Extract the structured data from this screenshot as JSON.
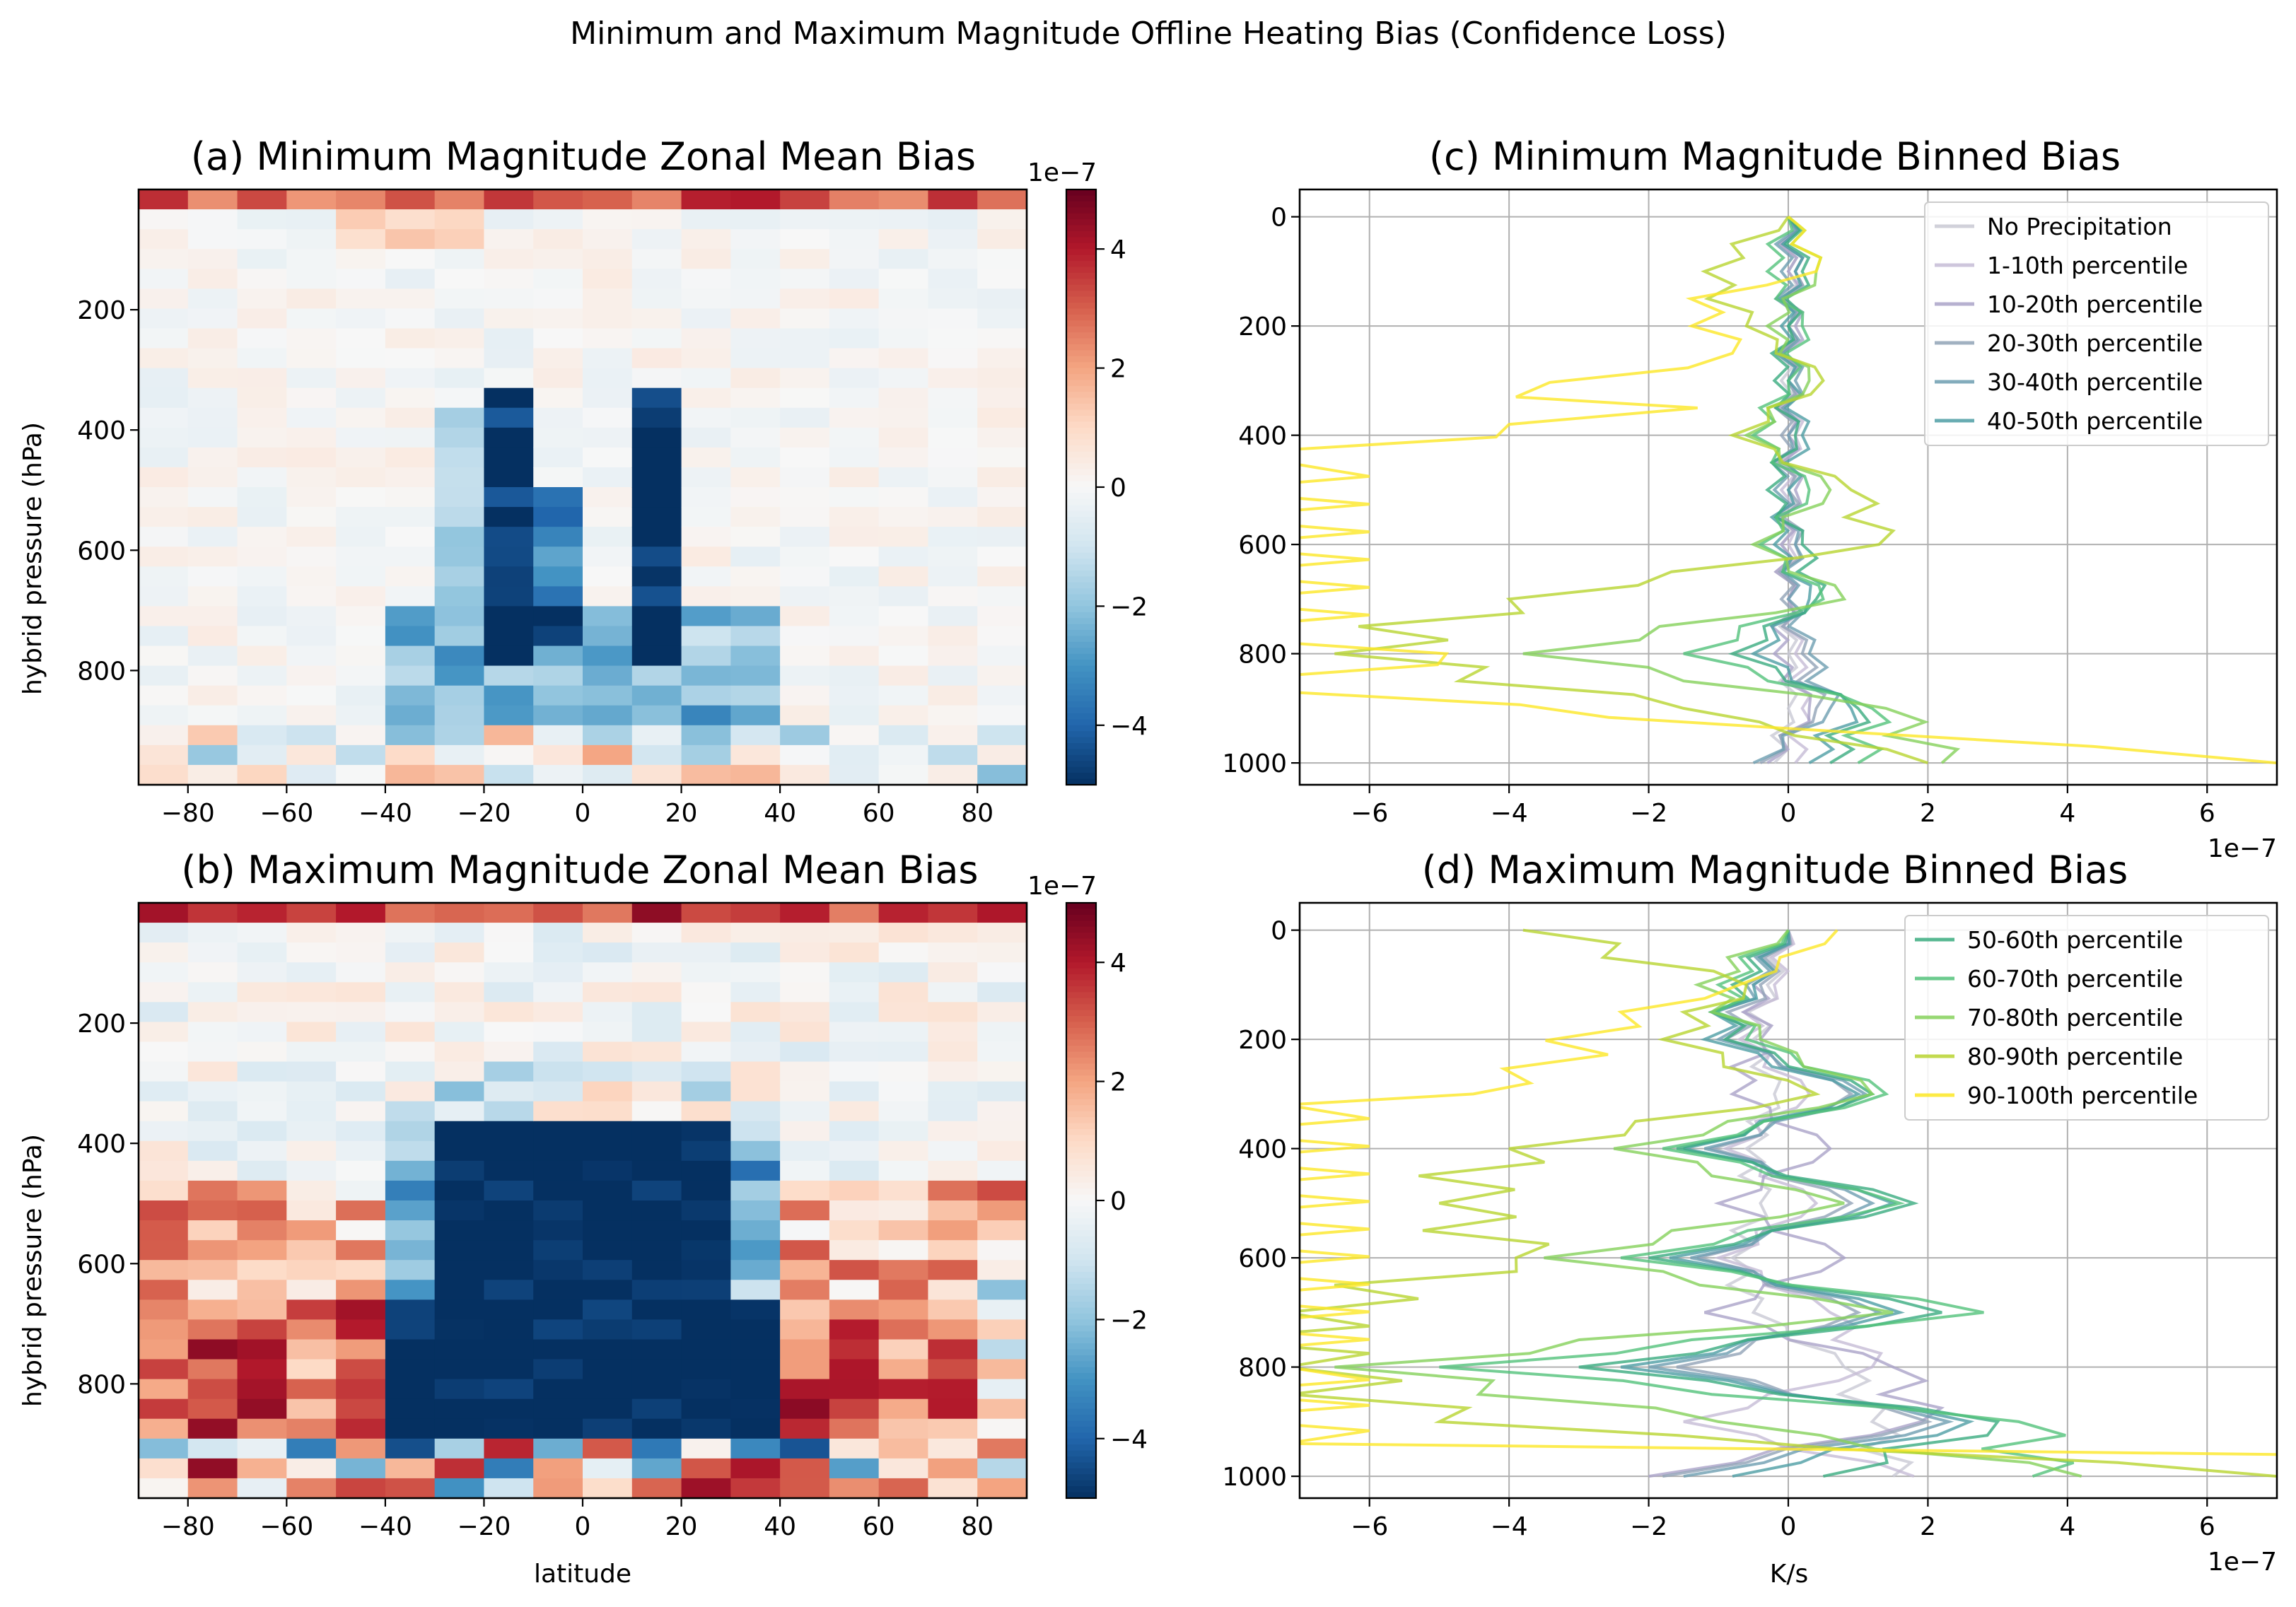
{
  "figure": {
    "suptitle": "Minimum and Maximum Magnitude Offline Heating Bias (Confidence Loss)"
  },
  "colors": {
    "neg_strong": "#053061",
    "neg_mid": "#4393c3",
    "neutral": "#f7f7f7",
    "pos_mid": "#f4a582",
    "pos_strong": "#67001f",
    "grid": "#b0b0b0"
  },
  "chart_data": [
    {
      "id": "a",
      "type": "heatmap",
      "title": "(a) Minimum Magnitude Zonal Mean Bias",
      "xlabel": "",
      "ylabel": "hybrid pressure (hPa)",
      "xlim": [
        -90,
        90
      ],
      "ylim": [
        990,
        0
      ],
      "xticks": [
        -80,
        -60,
        -40,
        -20,
        0,
        20,
        40,
        60,
        80
      ],
      "yticks": [
        200,
        400,
        600,
        800
      ],
      "colorbar": {
        "range": [
          -5,
          5
        ],
        "ticks": [
          4,
          2,
          0,
          -2,
          -4
        ],
        "exponent": "1e−7"
      },
      "latitude_bins": 18,
      "pressure_levels": 30,
      "approx_values": "mostly near 0 (|bias| < 0.5e-7); strong negative (~-5e-7) columns at -20..-10 and 10..20 lat between 350-800 hPa; moderate negative -40..40 lat between 700-900 hPa; positive (~3e-7) near top levels and near surface"
    },
    {
      "id": "b",
      "type": "heatmap",
      "title": "(b) Maximum Magnitude Zonal Mean Bias",
      "xlabel": "latitude",
      "ylabel": "hybrid pressure (hPa)",
      "xlim": [
        -90,
        90
      ],
      "ylim": [
        990,
        0
      ],
      "xticks": [
        -80,
        -60,
        -40,
        -20,
        0,
        20,
        40,
        60,
        80
      ],
      "yticks": [
        200,
        400,
        600,
        800
      ],
      "colorbar": {
        "range": [
          -5,
          5
        ],
        "ticks": [
          4,
          2,
          0,
          -2,
          -4
        ],
        "exponent": "1e−7"
      },
      "latitude_bins": 18,
      "pressure_levels": 30,
      "approx_values": "strong negative (~-5e-7) block from -40 to 40 lat between 350-900 hPa; positive (2-5e-7) in midlatitudes 40-80 deg both hemispheres below 500 hPa; positive near model top"
    },
    {
      "id": "c",
      "type": "line",
      "title": "(c) Minimum Magnitude Binned Bias",
      "xlabel": "",
      "ylabel": "",
      "xlim": [
        -7,
        7
      ],
      "ylim": [
        1040,
        -50
      ],
      "xticks": [
        -6,
        -4,
        -2,
        0,
        2,
        4,
        6
      ],
      "yticks": [
        0,
        200,
        400,
        600,
        800,
        1000
      ],
      "x_exponent": "1e−7",
      "legend": "top-right",
      "series": [
        {
          "name": "No Precipitation",
          "color": "#c9c9d4",
          "pressure": [
            0,
            100,
            200,
            300,
            400,
            500,
            600,
            700,
            800,
            900,
            1000
          ],
          "values": [
            0,
            0,
            0,
            -0.1,
            0,
            0,
            -0.1,
            0,
            0,
            0,
            -0.2
          ]
        },
        {
          "name": "1-10th percentile",
          "color": "#c5bcd6",
          "pressure": [
            0,
            100,
            200,
            300,
            400,
            500,
            600,
            700,
            800,
            900,
            1000
          ],
          "values": [
            0,
            0.1,
            0,
            0,
            0.1,
            -0.1,
            0,
            0,
            0.1,
            0.2,
            0.1
          ]
        },
        {
          "name": "10-20th percentile",
          "color": "#aaa3c8",
          "pressure": [
            0,
            100,
            200,
            300,
            400,
            500,
            600,
            700,
            800,
            900,
            1000
          ],
          "values": [
            0,
            0,
            0.1,
            0,
            0,
            0.1,
            -0.1,
            0,
            -0.2,
            0.3,
            -0.3
          ]
        },
        {
          "name": "20-30th percentile",
          "color": "#91a3b6",
          "pressure": [
            0,
            100,
            200,
            300,
            400,
            500,
            600,
            700,
            800,
            900,
            1000
          ],
          "values": [
            0,
            0.1,
            0,
            0,
            -0.1,
            0,
            0.1,
            -0.1,
            0.2,
            0.4,
            -0.4
          ]
        },
        {
          "name": "30-40th percentile",
          "color": "#6d9db0",
          "pressure": [
            0,
            100,
            200,
            300,
            400,
            500,
            600,
            700,
            800,
            900,
            1000
          ],
          "values": [
            0,
            -0.1,
            0,
            0.1,
            0,
            -0.2,
            0.1,
            0,
            0.3,
            0.6,
            -0.5
          ]
        },
        {
          "name": "40-50th percentile",
          "color": "#4e9ea4",
          "pressure": [
            0,
            100,
            200,
            300,
            400,
            500,
            600,
            700,
            800,
            900,
            1000
          ],
          "values": [
            0,
            0.1,
            -0.1,
            0,
            0.2,
            0,
            -0.2,
            0.3,
            -0.5,
            0.9,
            0.3
          ]
        },
        {
          "name": "50-60th percentile",
          "color": "#3aab7f",
          "legend": false,
          "pressure": [
            0,
            100,
            200,
            300,
            400,
            500,
            600,
            700,
            800,
            900,
            1000
          ],
          "values": [
            0,
            0.2,
            0,
            -0.2,
            0.1,
            -0.3,
            0.2,
            0.4,
            -0.8,
            1.0,
            0.6
          ]
        },
        {
          "name": "60-70th percentile",
          "color": "#52c27a",
          "legend": false,
          "pressure": [
            0,
            100,
            200,
            300,
            400,
            500,
            600,
            700,
            800,
            900,
            1000
          ],
          "values": [
            0,
            -0.3,
            0.2,
            0,
            -0.5,
            0.3,
            -0.4,
            0.5,
            -1.5,
            1.2,
            1.0
          ]
        },
        {
          "name": "70-80th percentile",
          "color": "#85d15a",
          "legend": false,
          "pressure": [
            0,
            100,
            200,
            300,
            400,
            500,
            600,
            700,
            800,
            900,
            1000
          ],
          "values": [
            0,
            0.4,
            -0.3,
            0.3,
            -0.6,
            0.6,
            -0.5,
            0.8,
            -3.8,
            1.4,
            2.2
          ]
        },
        {
          "name": "80-90th percentile",
          "color": "#b8d430",
          "legend": false,
          "pressure": [
            0,
            100,
            200,
            300,
            400,
            500,
            600,
            700,
            800,
            900,
            1000
          ],
          "values": [
            0,
            -1.2,
            -0.6,
            0.5,
            -0.8,
            0.9,
            1.3,
            -4.0,
            -6.5,
            -1.5,
            2.0
          ]
        },
        {
          "name": "90-100th percentile",
          "color": "#fde725",
          "legend": false,
          "pressure": [
            0,
            100,
            150,
            250,
            330,
            350,
            380,
            450,
            780,
            800,
            840,
            870,
            940,
            1000
          ],
          "values": [
            0,
            0.4,
            -1.4,
            -0.8,
            -3.9,
            -1.3,
            -4.0,
            -7.2,
            -7.2,
            -4.9,
            -7.2,
            -7.2,
            0.4,
            7.0
          ]
        }
      ]
    },
    {
      "id": "d",
      "type": "line",
      "title": "(d) Maximum Magnitude Binned Bias",
      "xlabel": "K/s",
      "ylabel": "",
      "xlim": [
        -7,
        7
      ],
      "ylim": [
        1040,
        -50
      ],
      "xticks": [
        -6,
        -4,
        -2,
        0,
        2,
        4,
        6
      ],
      "yticks": [
        0,
        200,
        400,
        600,
        800,
        1000
      ],
      "x_exponent": "1e−7",
      "legend": "top-right",
      "series": [
        {
          "name": "No Precipitation",
          "color": "#c9c9d4",
          "legend": false,
          "pressure": [
            0,
            100,
            200,
            300,
            400,
            500,
            600,
            700,
            800,
            900,
            1000
          ],
          "values": [
            0,
            -0.3,
            -0.5,
            -0.2,
            -0.6,
            -0.4,
            -0.8,
            -0.5,
            0.8,
            1.2,
            1.5
          ]
        },
        {
          "name": "1-10th percentile",
          "color": "#c5bcd6",
          "legend": false,
          "pressure": [
            0,
            100,
            200,
            300,
            400,
            500,
            600,
            700,
            800,
            900,
            1000
          ],
          "values": [
            0,
            -0.2,
            -0.7,
            0.3,
            -0.9,
            0.4,
            -1.0,
            0.6,
            1.2,
            -1.5,
            1.8
          ]
        },
        {
          "name": "10-20th percentile",
          "color": "#aaa3c8",
          "legend": false,
          "pressure": [
            0,
            100,
            200,
            300,
            400,
            500,
            600,
            700,
            800,
            900,
            1000
          ],
          "values": [
            0,
            -0.5,
            -0.4,
            -0.8,
            0.6,
            -1.0,
            0.8,
            -1.2,
            1.5,
            1.9,
            -2.0
          ]
        },
        {
          "name": "20-30th percentile",
          "color": "#91a3b6",
          "legend": false,
          "pressure": [
            0,
            100,
            200,
            300,
            400,
            500,
            600,
            700,
            800,
            900,
            1000
          ],
          "values": [
            0,
            -0.4,
            -0.9,
            0.9,
            -1.1,
            0.9,
            -1.3,
            1.0,
            -1.6,
            2.0,
            -1.8
          ]
        },
        {
          "name": "30-40th percentile",
          "color": "#6d9db0",
          "legend": false,
          "pressure": [
            0,
            100,
            200,
            300,
            400,
            500,
            600,
            700,
            800,
            900,
            1000
          ],
          "values": [
            0,
            -0.6,
            -1.0,
            1.1,
            -1.2,
            1.2,
            -1.4,
            1.3,
            -2.0,
            2.3,
            -1.5
          ]
        },
        {
          "name": "40-50th percentile",
          "color": "#4e9ea4",
          "legend": false,
          "pressure": [
            0,
            100,
            200,
            300,
            400,
            500,
            600,
            700,
            800,
            900,
            1000
          ],
          "values": [
            0,
            -0.5,
            -1.2,
            1.0,
            -1.5,
            1.5,
            -1.7,
            1.6,
            -2.4,
            2.6,
            -0.8
          ]
        },
        {
          "name": "50-60th percentile",
          "color": "#3aab7f",
          "pressure": [
            0,
            100,
            200,
            300,
            400,
            500,
            600,
            700,
            800,
            900,
            1000
          ],
          "values": [
            0,
            -0.8,
            -0.9,
            1.2,
            -1.6,
            1.8,
            -2.0,
            2.2,
            -3.0,
            3.0,
            0.5
          ]
        },
        {
          "name": "60-70th percentile",
          "color": "#52c27a",
          "pressure": [
            0,
            100,
            200,
            300,
            400,
            500,
            600,
            700,
            800,
            900,
            1000
          ],
          "values": [
            0,
            -1.0,
            -0.6,
            1.4,
            -1.8,
            1.6,
            -2.4,
            2.8,
            -5.0,
            3.3,
            3.5
          ]
        },
        {
          "name": "70-80th percentile",
          "color": "#85d15a",
          "pressure": [
            0,
            100,
            200,
            300,
            400,
            500,
            600,
            700,
            800,
            900,
            1000
          ],
          "values": [
            0,
            -1.3,
            -0.4,
            1.2,
            -2.5,
            0.8,
            -3.5,
            1.5,
            -6.5,
            -1.0,
            4.2
          ]
        },
        {
          "name": "80-90th percentile",
          "color": "#b8d430",
          "pressure": [
            0,
            100,
            200,
            300,
            400,
            500,
            600,
            700,
            800,
            900,
            1000
          ],
          "values": [
            -3.8,
            -0.6,
            -1.8,
            0.4,
            -4.0,
            -5.0,
            -3.9,
            -7.2,
            -7.2,
            -5.0,
            7.0
          ]
        },
        {
          "name": "90-100th percentile",
          "color": "#fde725",
          "pressure": [
            0,
            100,
            150,
            280,
            320,
            800,
            940,
            960,
            1000
          ],
          "values": [
            0.7,
            -0.7,
            -2.4,
            -3.7,
            -7.2,
            -7.2,
            -7.2,
            7.0,
            7.0
          ]
        }
      ]
    }
  ]
}
